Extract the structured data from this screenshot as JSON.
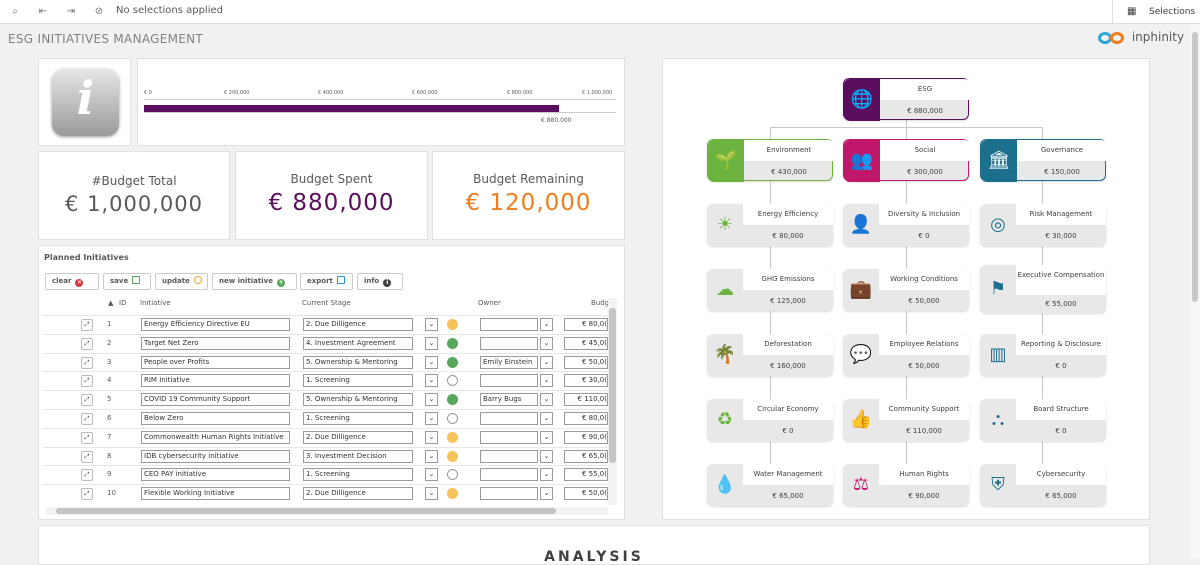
{
  "toolbar": {
    "no_selections": "No selections applied",
    "selections_label": "Selections"
  },
  "app": {
    "title": "ESG INITIATIVES MANAGEMENT",
    "brand": "inphinity"
  },
  "progress": {
    "ticks": [
      "€ 0",
      "€ 200,000",
      "€ 400,000",
      "€ 600,000",
      "€ 800,000",
      "€ 1,000,000"
    ],
    "spent_label": "€ 880,000",
    "fraction": 0.88,
    "color": "#5b0e5e"
  },
  "kpis": {
    "total": {
      "title": "#Budget Total",
      "value": "€ 1,000,000",
      "color": "#595959"
    },
    "spent": {
      "title": "Budget Spent",
      "value": "€ 880,000",
      "color": "#5b0e5e"
    },
    "remaining": {
      "title": "Budget Remaining",
      "value": "€ 120,000",
      "color": "#f07d1e"
    }
  },
  "initiatives": {
    "title": "Planned Initiatives",
    "buttons": {
      "clear": "clear",
      "save": "save",
      "update": "update",
      "new": "new initiative",
      "export": "export",
      "info": "info"
    },
    "headers": {
      "id": "ID",
      "initiative": "Initiative",
      "stage": "Current Stage",
      "owner": "Owner",
      "budget": "Budg"
    },
    "rows": [
      {
        "id": "1",
        "name": "Energy Efficiency Directive EU",
        "stage": "2. Due Dilligence",
        "status": "#f7c25a",
        "owner": "",
        "budget": "€ 80,0("
      },
      {
        "id": "2",
        "name": "Target Net Zero",
        "stage": "4. Investment Agreement",
        "status": "#57a75b",
        "owner": "",
        "budget": "€ 45,0("
      },
      {
        "id": "3",
        "name": "People over Profits",
        "stage": "5. Ownership & Mentoring",
        "status": "#57a75b",
        "owner": "Emily Einstein",
        "budget": "€ 50,0("
      },
      {
        "id": "4",
        "name": "RIM Initiative",
        "stage": "1. Screening",
        "status": "#ffffff",
        "owner": "",
        "budget": "€ 30,0("
      },
      {
        "id": "5",
        "name": "COVID 19 Community Support",
        "stage": "5. Ownership & Mentoring",
        "status": "#57a75b",
        "owner": "Barry Bugs",
        "budget": "€ 110,0("
      },
      {
        "id": "6",
        "name": "Below Zero",
        "stage": "1. Screening",
        "status": "#ffffff",
        "owner": "",
        "budget": "€ 80,0("
      },
      {
        "id": "7",
        "name": "Commonwealth Human Rights Initiative",
        "stage": "2. Due Dilligence",
        "status": "#f7c25a",
        "owner": "",
        "budget": "€ 90,0("
      },
      {
        "id": "8",
        "name": "IDB cybersecurity initiative",
        "stage": "3. Investment Decision",
        "status": "#f7c25a",
        "owner": "",
        "budget": "€ 65,0("
      },
      {
        "id": "9",
        "name": "CEO PAY initiative",
        "stage": "1. Screening",
        "status": "#ffffff",
        "owner": "",
        "budget": "€ 55,0("
      },
      {
        "id": "10",
        "name": "Flexible Working Initiative",
        "stage": "2. Due Dilligence",
        "status": "#f7c25a",
        "owner": "",
        "budget": "€ 50,0("
      }
    ]
  },
  "tree": {
    "root": {
      "label": "ESG",
      "value": "€ 880,000",
      "color": "#5b0e5e",
      "icon": "globe-icon"
    },
    "pillars": [
      {
        "label": "Environment",
        "value": "€ 430,000",
        "color": "#6cb33f",
        "icon": "leaf-icon"
      },
      {
        "label": "Social",
        "value": "€ 300,000",
        "color": "#c0176a",
        "icon": "people-icon"
      },
      {
        "label": "Governance",
        "value": "€ 150,000",
        "color": "#1d6f8e",
        "icon": "courthouse-icon"
      }
    ],
    "env": [
      {
        "label": "Energy Efficiency",
        "value": "€ 80,000",
        "icon": "sun-icon"
      },
      {
        "label": "GHG Emissions",
        "value": "€ 125,000",
        "icon": "co2-cloud-icon"
      },
      {
        "label": "Deforestation",
        "value": "€ 160,000",
        "icon": "palm-tree-icon"
      },
      {
        "label": "Circular Economy",
        "value": "€ 0",
        "icon": "recycle-icon"
      },
      {
        "label": "Water Management",
        "value": "€ 65,000",
        "icon": "water-drop-icon"
      }
    ],
    "soc": [
      {
        "label": "Diversity & Inclusion",
        "value": "€ 0",
        "icon": "user-add-icon"
      },
      {
        "label": "Working Conditions",
        "value": "€ 50,000",
        "icon": "briefcase-icon"
      },
      {
        "label": "Employee Relations",
        "value": "€ 50,000",
        "icon": "chat-icon"
      },
      {
        "label": "Community Support",
        "value": "€ 110,000",
        "icon": "thumbs-up-icon"
      },
      {
        "label": "Human Rights",
        "value": "€ 90,000",
        "icon": "scales-icon"
      }
    ],
    "gov": [
      {
        "label": "Risk Management",
        "value": "€ 30,000",
        "icon": "target-icon"
      },
      {
        "label": "Executive Compensation",
        "value": "€ 55,000",
        "icon": "flag-icon"
      },
      {
        "label": "Reporting & Disclosure",
        "value": "€ 0",
        "icon": "bar-chart-icon"
      },
      {
        "label": "Board Structure",
        "value": "€ 0",
        "icon": "org-chart-icon"
      },
      {
        "label": "Cybersecurity",
        "value": "€ 65,000",
        "icon": "shield-icon"
      }
    ]
  },
  "analysis_label": "ANALYSIS"
}
